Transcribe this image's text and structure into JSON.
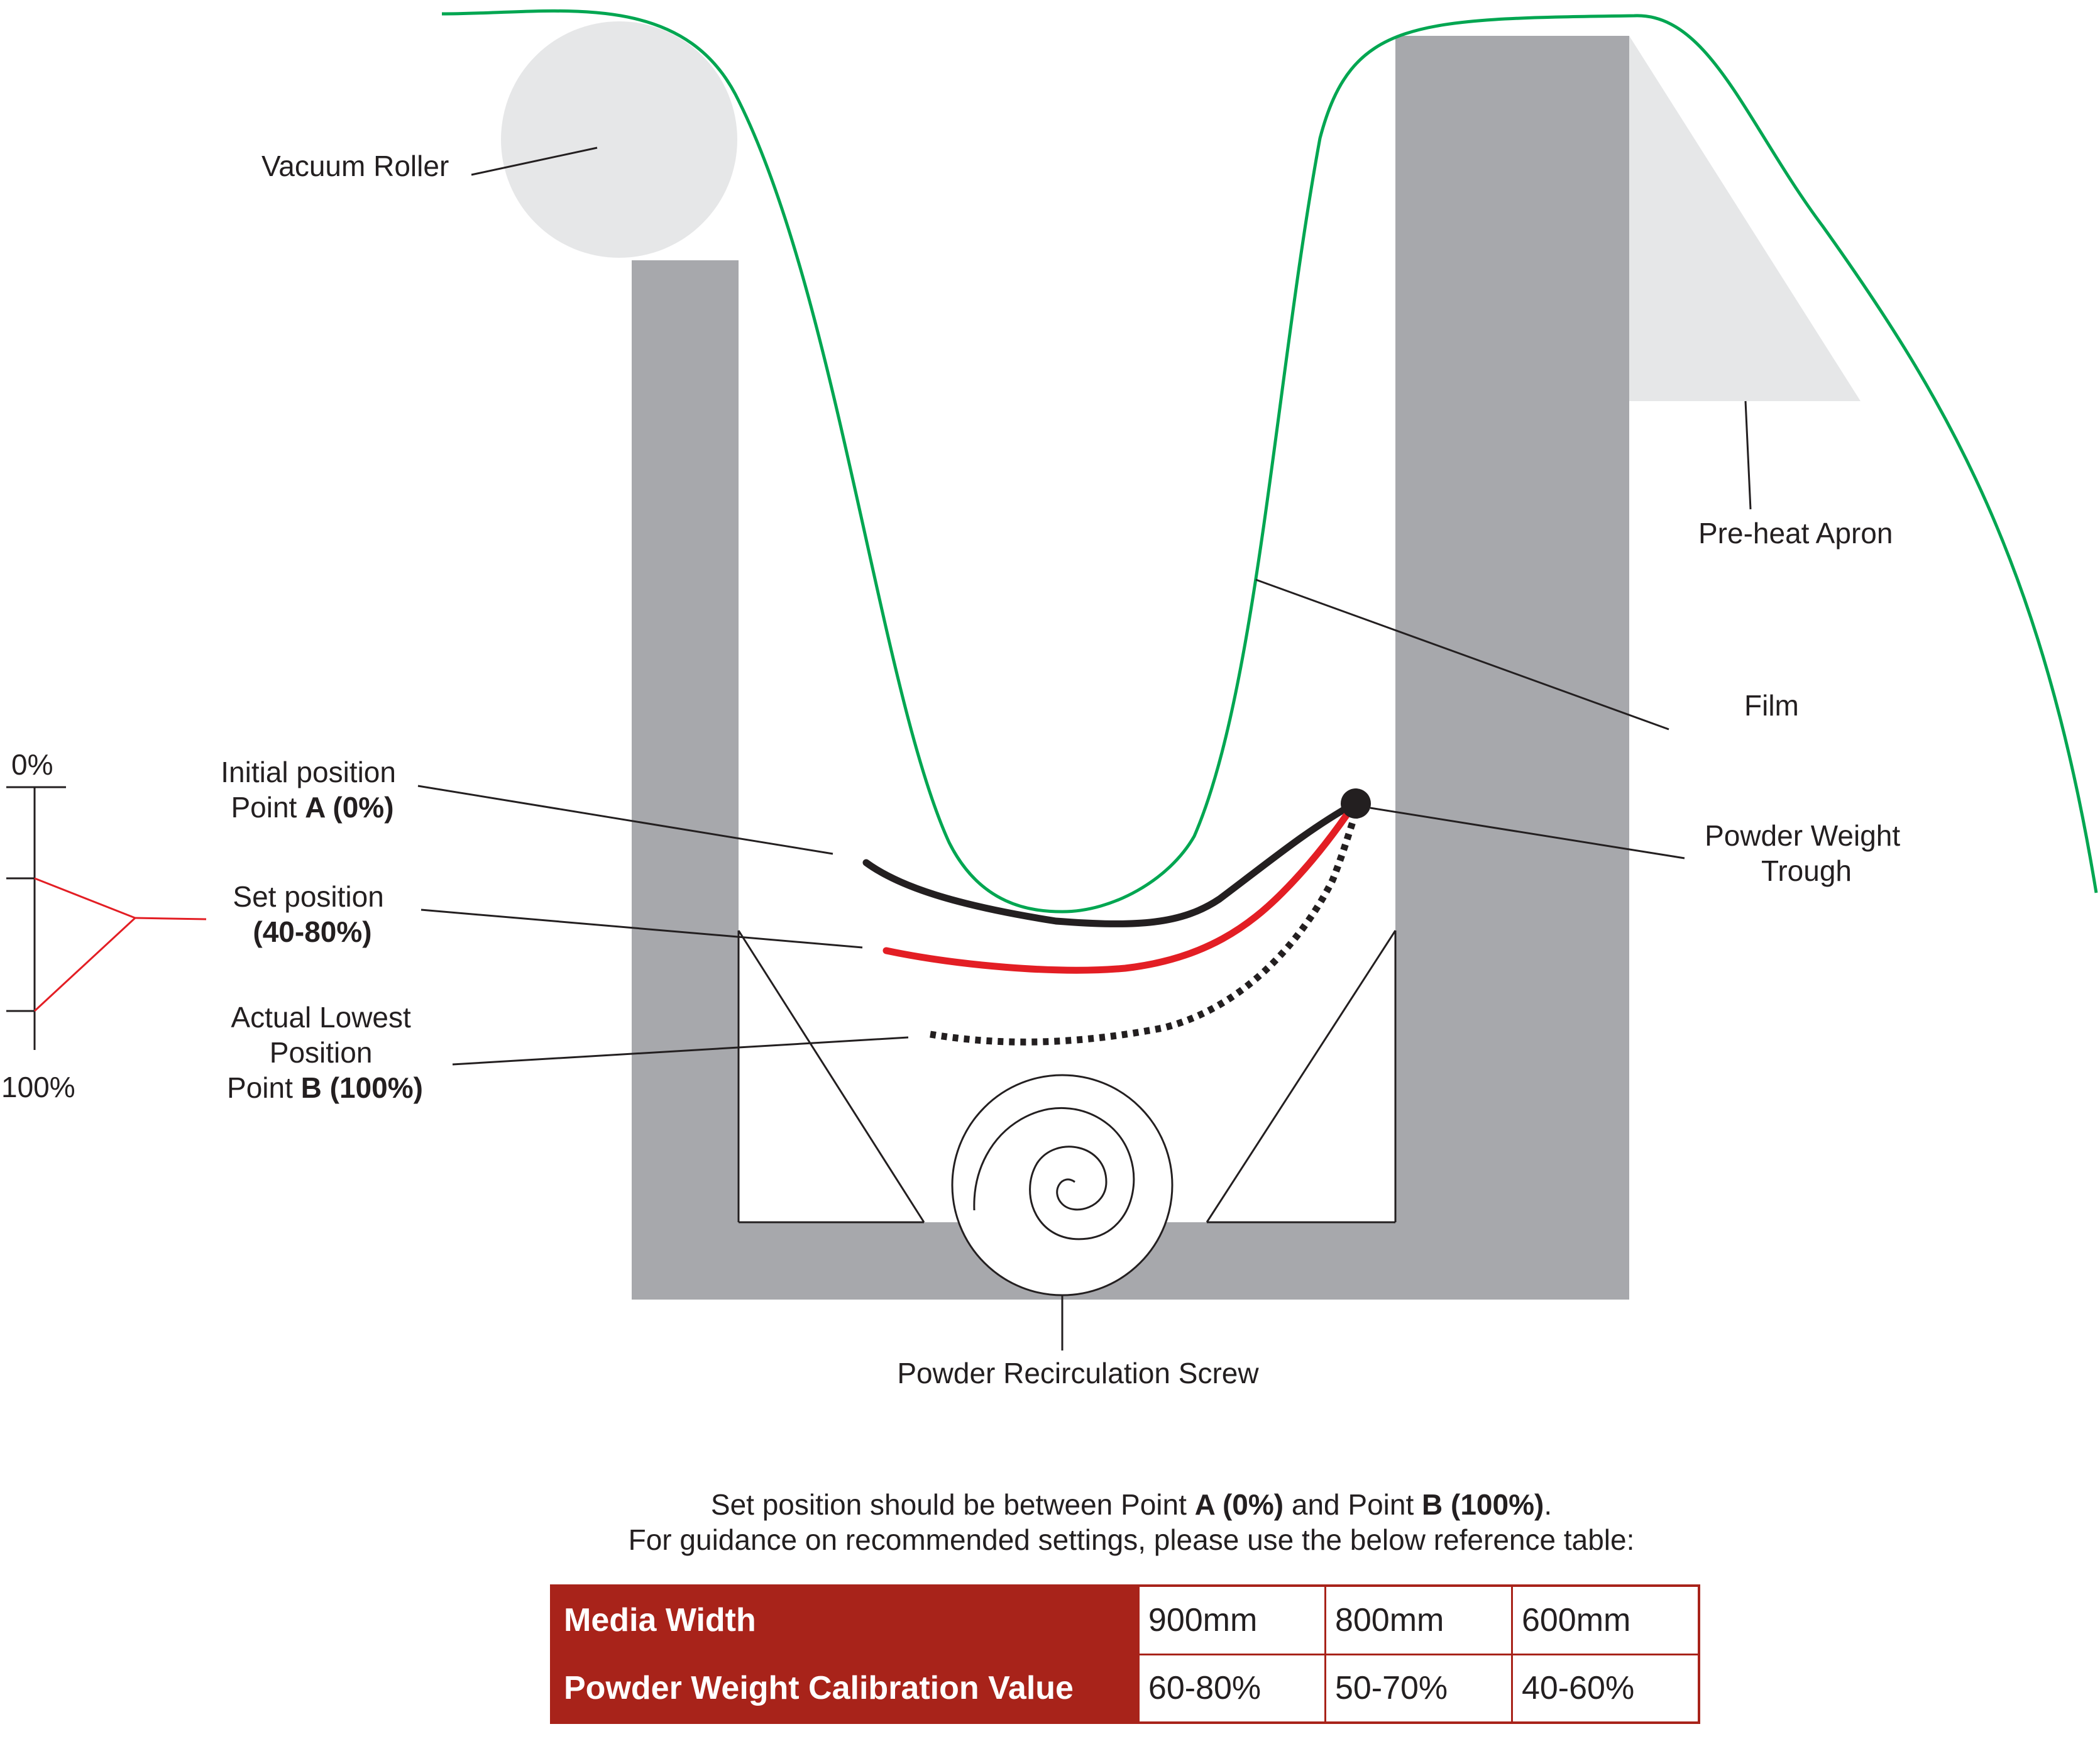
{
  "labels": {
    "vacuum_roller": "Vacuum Roller",
    "pre_heat_apron": "Pre-heat Apron",
    "film": "Film",
    "powder_weight_trough_line1": "Powder Weight",
    "powder_weight_trough_line2": "Trough",
    "powder_recirculation_screw": "Powder Recirculation Screw",
    "initial_position_line1": "Initial position",
    "initial_position_line2_prefix": "Point ",
    "initial_position_line2_bold": "A (0%)",
    "set_position_line1": "Set position",
    "set_position_line2": "(40-80%)",
    "actual_lowest_line1": "Actual Lowest",
    "actual_lowest_line2": "Position",
    "actual_lowest_line3_prefix": "Point ",
    "actual_lowest_line3_bold": "B (100%)"
  },
  "scale": {
    "top": "0%",
    "bottom": "100%"
  },
  "note": {
    "line1_a": "Set position should be between Point ",
    "line1_b": "A (0%)",
    "line1_c": " and Point ",
    "line1_d": "B (100%)",
    "line1_e": ".",
    "line2": "For guidance on recommended settings, please use the below reference table:"
  },
  "table": {
    "rows": [
      {
        "header": "Media Width",
        "values": [
          "900mm",
          "800mm",
          "600mm"
        ]
      },
      {
        "header": "Powder Weight Calibration Value",
        "values": [
          "60-80%",
          "50-70%",
          "40-60%"
        ]
      }
    ]
  },
  "colors": {
    "frame": "#a7a8ac",
    "roller": "#e6e7e8",
    "film": "#00a651",
    "initial_line": "#231f20",
    "set_line": "#e31e24",
    "table_header": "#a8231a"
  }
}
